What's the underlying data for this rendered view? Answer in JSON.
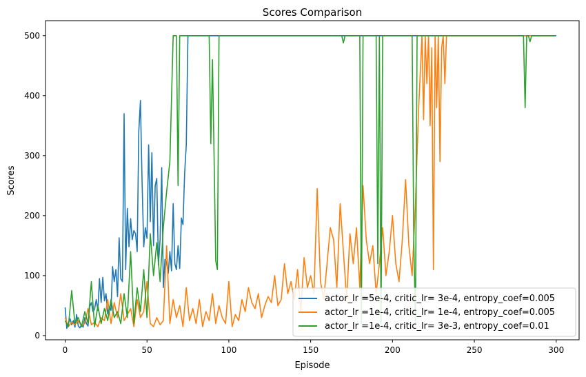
{
  "chart_data": {
    "type": "line",
    "title": "Scores Comparison",
    "xlabel": "Episode",
    "ylabel": "Scores",
    "xlim": [
      -12,
      314
    ],
    "ylim": [
      -7,
      525
    ],
    "xticks": [
      0,
      50,
      100,
      150,
      200,
      250,
      300
    ],
    "yticks": [
      0,
      100,
      200,
      300,
      400,
      500
    ],
    "grid": false,
    "legend_position": "lower-right",
    "series": [
      {
        "name": "actor_lr =5e-4, critic_lr= 3e-4, entropy_coef=0.005",
        "color": "#1f77b4",
        "x": [
          0,
          1,
          2,
          3,
          4,
          5,
          6,
          7,
          8,
          9,
          10,
          11,
          12,
          13,
          14,
          15,
          16,
          17,
          18,
          19,
          20,
          21,
          22,
          23,
          24,
          25,
          26,
          27,
          28,
          29,
          30,
          31,
          32,
          33,
          34,
          35,
          36,
          37,
          38,
          39,
          40,
          41,
          42,
          43,
          44,
          45,
          46,
          47,
          48,
          49,
          50,
          51,
          52,
          53,
          54,
          55,
          56,
          57,
          58,
          59,
          60,
          61,
          62,
          63,
          64,
          65,
          66,
          67,
          68,
          69,
          70,
          71,
          72,
          73,
          74,
          75,
          76,
          77,
          78,
          79,
          80,
          81,
          82,
          83,
          84,
          85,
          86,
          87,
          88,
          89,
          90,
          91,
          92,
          93,
          94,
          95,
          96,
          97,
          98,
          99,
          100,
          150,
          200,
          250,
          300
        ],
        "y": [
          47,
          12,
          20,
          28,
          18,
          25,
          14,
          35,
          16,
          13,
          18,
          14,
          30,
          20,
          16,
          48,
          55,
          40,
          44,
          60,
          42,
          95,
          55,
          97,
          58,
          70,
          36,
          48,
          42,
          115,
          90,
          110,
          65,
          163,
          95,
          90,
          370,
          110,
          212,
          148,
          195,
          160,
          175,
          170,
          140,
          340,
          392,
          255,
          148,
          180,
          162,
          318,
          190,
          305,
          150,
          250,
          262,
          118,
          160,
          280,
          80,
          127,
          122,
          104,
          140,
          108,
          220,
          120,
          110,
          150,
          112,
          196,
          185,
          270,
          318,
          500,
          500,
          500,
          500,
          500,
          500,
          500,
          500,
          500,
          500,
          500,
          500,
          500,
          500,
          500,
          500,
          500,
          500,
          500,
          500,
          500,
          500,
          500,
          500,
          500,
          500,
          500,
          500,
          500,
          500
        ]
      },
      {
        "name": "actor_lr =1e-4, critic_lr= 1e-4, entropy_coef=0.005",
        "color": "#ff7f0e",
        "x": [
          0,
          2,
          4,
          6,
          8,
          10,
          12,
          14,
          16,
          18,
          20,
          22,
          24,
          26,
          28,
          30,
          32,
          34,
          36,
          38,
          40,
          42,
          44,
          46,
          48,
          50,
          52,
          54,
          56,
          58,
          60,
          62,
          64,
          66,
          68,
          70,
          72,
          74,
          76,
          78,
          80,
          82,
          84,
          86,
          88,
          90,
          92,
          94,
          96,
          98,
          100,
          102,
          104,
          106,
          108,
          110,
          112,
          114,
          116,
          118,
          120,
          122,
          124,
          126,
          128,
          130,
          132,
          134,
          136,
          138,
          140,
          142,
          144,
          146,
          148,
          150,
          152,
          154,
          156,
          158,
          160,
          162,
          164,
          166,
          168,
          170,
          172,
          174,
          176,
          178,
          180,
          182,
          184,
          186,
          188,
          190,
          192,
          194,
          196,
          198,
          200,
          202,
          204,
          206,
          208,
          210,
          212,
          214,
          216,
          218,
          219,
          220,
          221,
          222,
          223,
          224,
          225,
          226,
          227,
          228,
          229,
          230,
          231,
          232,
          233,
          234,
          235,
          236,
          237,
          238,
          240,
          250,
          260,
          270,
          280,
          285,
          290,
          299
        ],
        "y": [
          30,
          15,
          22,
          18,
          25,
          16,
          20,
          45,
          18,
          22,
          15,
          30,
          25,
          60,
          20,
          55,
          30,
          70,
          25,
          35,
          45,
          15,
          60,
          30,
          40,
          90,
          20,
          15,
          30,
          18,
          25,
          150,
          20,
          60,
          30,
          50,
          15,
          80,
          25,
          45,
          20,
          60,
          15,
          40,
          25,
          70,
          20,
          50,
          30,
          20,
          90,
          15,
          35,
          25,
          60,
          40,
          80,
          55,
          45,
          70,
          30,
          50,
          65,
          55,
          100,
          50,
          60,
          120,
          70,
          90,
          60,
          110,
          40,
          130,
          80,
          100,
          70,
          245,
          90,
          60,
          120,
          180,
          160,
          80,
          220,
          140,
          60,
          170,
          120,
          180,
          80,
          250,
          160,
          120,
          150,
          70,
          120,
          180,
          100,
          140,
          200,
          120,
          90,
          160,
          260,
          150,
          100,
          220,
          380,
          500,
          360,
          500,
          420,
          500,
          350,
          480,
          110,
          500,
          380,
          500,
          290,
          480,
          500,
          420,
          500,
          500,
          500,
          500,
          500,
          500,
          500,
          500,
          500,
          500,
          500,
          500,
          500,
          500
        ]
      },
      {
        "name": "actor_lr =1e-4, critic_lr= 3e-3, entropy_coef=0.01",
        "color": "#2ca02c",
        "x": [
          0,
          2,
          4,
          6,
          8,
          10,
          12,
          14,
          16,
          18,
          20,
          22,
          24,
          26,
          28,
          30,
          32,
          34,
          36,
          38,
          40,
          42,
          44,
          46,
          48,
          50,
          52,
          54,
          56,
          58,
          60,
          62,
          64,
          66,
          67,
          68,
          69,
          70,
          80,
          88,
          89,
          90,
          91,
          92,
          93,
          94,
          95,
          100,
          150,
          169,
          170,
          171,
          180,
          181,
          182,
          190,
          191,
          192,
          193,
          194,
          195,
          200,
          212,
          213,
          214,
          215,
          216,
          220,
          280,
          281,
          282,
          283,
          284,
          285,
          286,
          290,
          299
        ],
        "y": [
          25,
          15,
          75,
          20,
          30,
          15,
          40,
          20,
          90,
          15,
          50,
          20,
          45,
          25,
          60,
          30,
          40,
          20,
          70,
          30,
          140,
          20,
          80,
          40,
          110,
          30,
          170,
          100,
          155,
          90,
          180,
          240,
          290,
          500,
          500,
          500,
          250,
          500,
          500,
          500,
          320,
          460,
          300,
          125,
          110,
          500,
          500,
          500,
          500,
          500,
          488,
          500,
          500,
          20,
          500,
          500,
          120,
          500,
          20,
          500,
          500,
          500,
          500,
          160,
          20,
          500,
          500,
          500,
          500,
          380,
          500,
          500,
          490,
          500,
          500,
          500,
          500
        ]
      }
    ]
  }
}
